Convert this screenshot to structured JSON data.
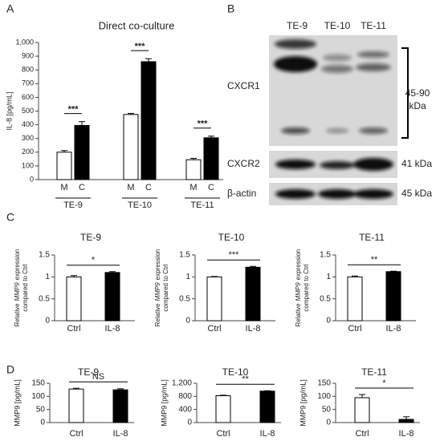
{
  "panel_labels": [
    "A",
    "B",
    "C",
    "D"
  ],
  "chart_data": [
    {
      "type": "grouped-bar",
      "title": "Direct co-culture",
      "ylabel": "IL-8 [pg/mL]",
      "categories": [
        "TE-9",
        "TE-10",
        "TE-11"
      ],
      "series": [
        {
          "name": "M",
          "color": "#ffffff",
          "values": [
            200,
            475,
            145
          ],
          "errors": [
            12,
            8,
            10
          ]
        },
        {
          "name": "C",
          "color": "#000000",
          "values": [
            395,
            860,
            305
          ],
          "errors": [
            28,
            22,
            12
          ]
        }
      ],
      "significance": [
        "***",
        "***",
        "***"
      ],
      "ylim": [
        0,
        1000
      ],
      "yticks": [
        0,
        100,
        200,
        300,
        400,
        500,
        600,
        700,
        800,
        900,
        {
          "value": 1000,
          "label": "1,000"
        }
      ]
    },
    {
      "type": "bar",
      "title": "TE-9",
      "ylabel": [
        "Relative",
        "MMP9",
        "expression",
        "compared to Ctrl"
      ],
      "categories": [
        "Ctrl",
        "IL-8"
      ],
      "values": [
        1,
        1.1
      ],
      "errors": [
        0.03,
        0.02
      ],
      "colors": [
        "#ffffff",
        "#000000"
      ],
      "significance": "*",
      "ylim": [
        0,
        1.5
      ],
      "yticks": [
        0,
        0.5,
        1,
        1.5
      ]
    },
    {
      "type": "bar",
      "title": "TE-10",
      "ylabel": [
        "Relative",
        "MMP9",
        "expression",
        "compared to Ctrl"
      ],
      "categories": [
        "Ctrl",
        "IL-8"
      ],
      "values": [
        1,
        1.22
      ],
      "errors": [
        0.01,
        0.02
      ],
      "colors": [
        "#ffffff",
        "#000000"
      ],
      "significance": "***",
      "ylim": [
        0,
        1.5
      ],
      "yticks": [
        0,
        0.5,
        1,
        1.5
      ]
    },
    {
      "type": "bar",
      "title": "TE-11",
      "ylabel": [
        "Relative",
        "MMP9",
        "expression",
        "compared to Ctrl"
      ],
      "categories": [
        "Ctrl",
        "IL-8"
      ],
      "values": [
        1,
        1.12
      ],
      "errors": [
        0.02,
        0.01
      ],
      "colors": [
        "#ffffff",
        "#000000"
      ],
      "significance": "**",
      "ylim": [
        0,
        1.5
      ],
      "yticks": [
        0,
        0.5,
        1,
        1.5
      ]
    },
    {
      "type": "bar",
      "title": "TE-9",
      "ylabel": "MMP9 [pg/mL]",
      "categories": [
        "Ctrl",
        "IL-8"
      ],
      "values": [
        128,
        125
      ],
      "errors": [
        3,
        4
      ],
      "colors": [
        "#ffffff",
        "#000000"
      ],
      "significance": "NS",
      "ylim": [
        0,
        150
      ],
      "yticks": [
        0,
        50,
        100,
        150
      ]
    },
    {
      "type": "bar",
      "title": "TE-10",
      "ylabel": "MMP9 [pg/mL]",
      "categories": [
        "Ctrl",
        "IL-8"
      ],
      "values": [
        820,
        960
      ],
      "errors": [
        15,
        12
      ],
      "colors": [
        "#ffffff",
        "#000000"
      ],
      "significance": "**",
      "ylim": [
        0,
        1200
      ],
      "yticks": [
        0,
        400,
        800,
        {
          "value": 1200,
          "label": "1,200"
        }
      ]
    },
    {
      "type": "bar",
      "title": "TE-11",
      "ylabel": "MMP9 [pg/mL]",
      "categories": [
        "Ctrl",
        "IL-8"
      ],
      "values": [
        95,
        12
      ],
      "errors": [
        12,
        10
      ],
      "colors": [
        "#ffffff",
        "#000000"
      ],
      "significance": "*",
      "ylim": [
        0,
        150
      ],
      "yticks": [
        0,
        50,
        100,
        150
      ]
    }
  ],
  "blot": {
    "lanes": [
      "TE-9",
      "TE-10",
      "TE-11"
    ],
    "rows": [
      {
        "name": "CXCR1",
        "size": [
          "45-90",
          "kDa"
        ]
      },
      {
        "name": "CXCR2",
        "size": "41 kDa"
      },
      {
        "name": "β-actin",
        "size": "45 kDa"
      }
    ]
  }
}
